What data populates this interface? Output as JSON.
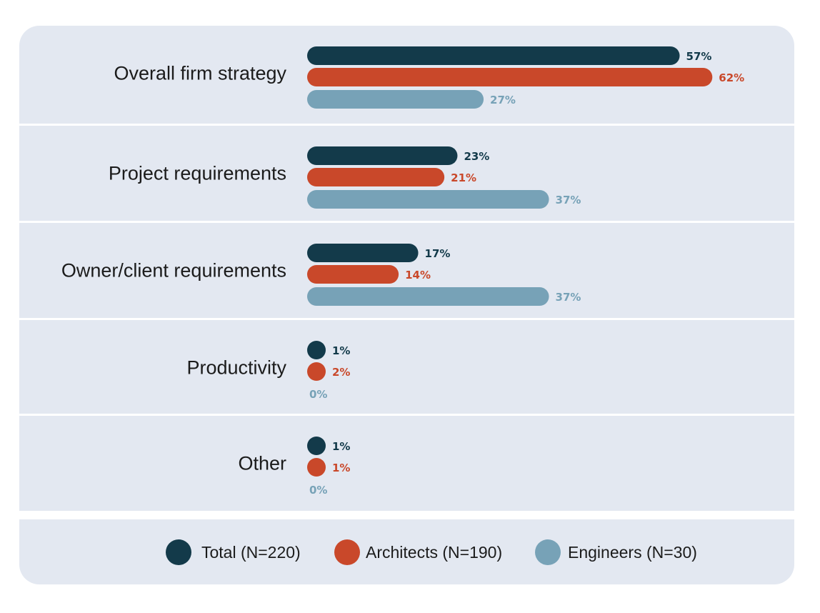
{
  "chart_data": {
    "type": "bar",
    "orientation": "horizontal",
    "categories": [
      "Overall firm strategy",
      "Project requirements",
      "Owner/client requirements",
      "Productivity",
      "Other"
    ],
    "series": [
      {
        "name": "Total (N=220)",
        "color": "#133a4a",
        "values": [
          57,
          23,
          17,
          1,
          1
        ],
        "labels": [
          "57%",
          "23%",
          "17%",
          "1%",
          "1%"
        ]
      },
      {
        "name": "Architects (N=190)",
        "color": "#c9482a",
        "values": [
          62,
          21,
          14,
          2,
          1
        ],
        "labels": [
          "62%",
          "21%",
          "14%",
          "2%",
          "1%"
        ]
      },
      {
        "name": "Engineers (N=30)",
        "color": "#77a2b7",
        "values": [
          27,
          37,
          37,
          0,
          0
        ],
        "labels": [
          "27%",
          "37%",
          "37%",
          "0%",
          "0%"
        ]
      }
    ],
    "xlim": [
      0,
      100
    ],
    "grid": false,
    "legend": "bottom-center",
    "background_color": "#e3e8f1"
  }
}
